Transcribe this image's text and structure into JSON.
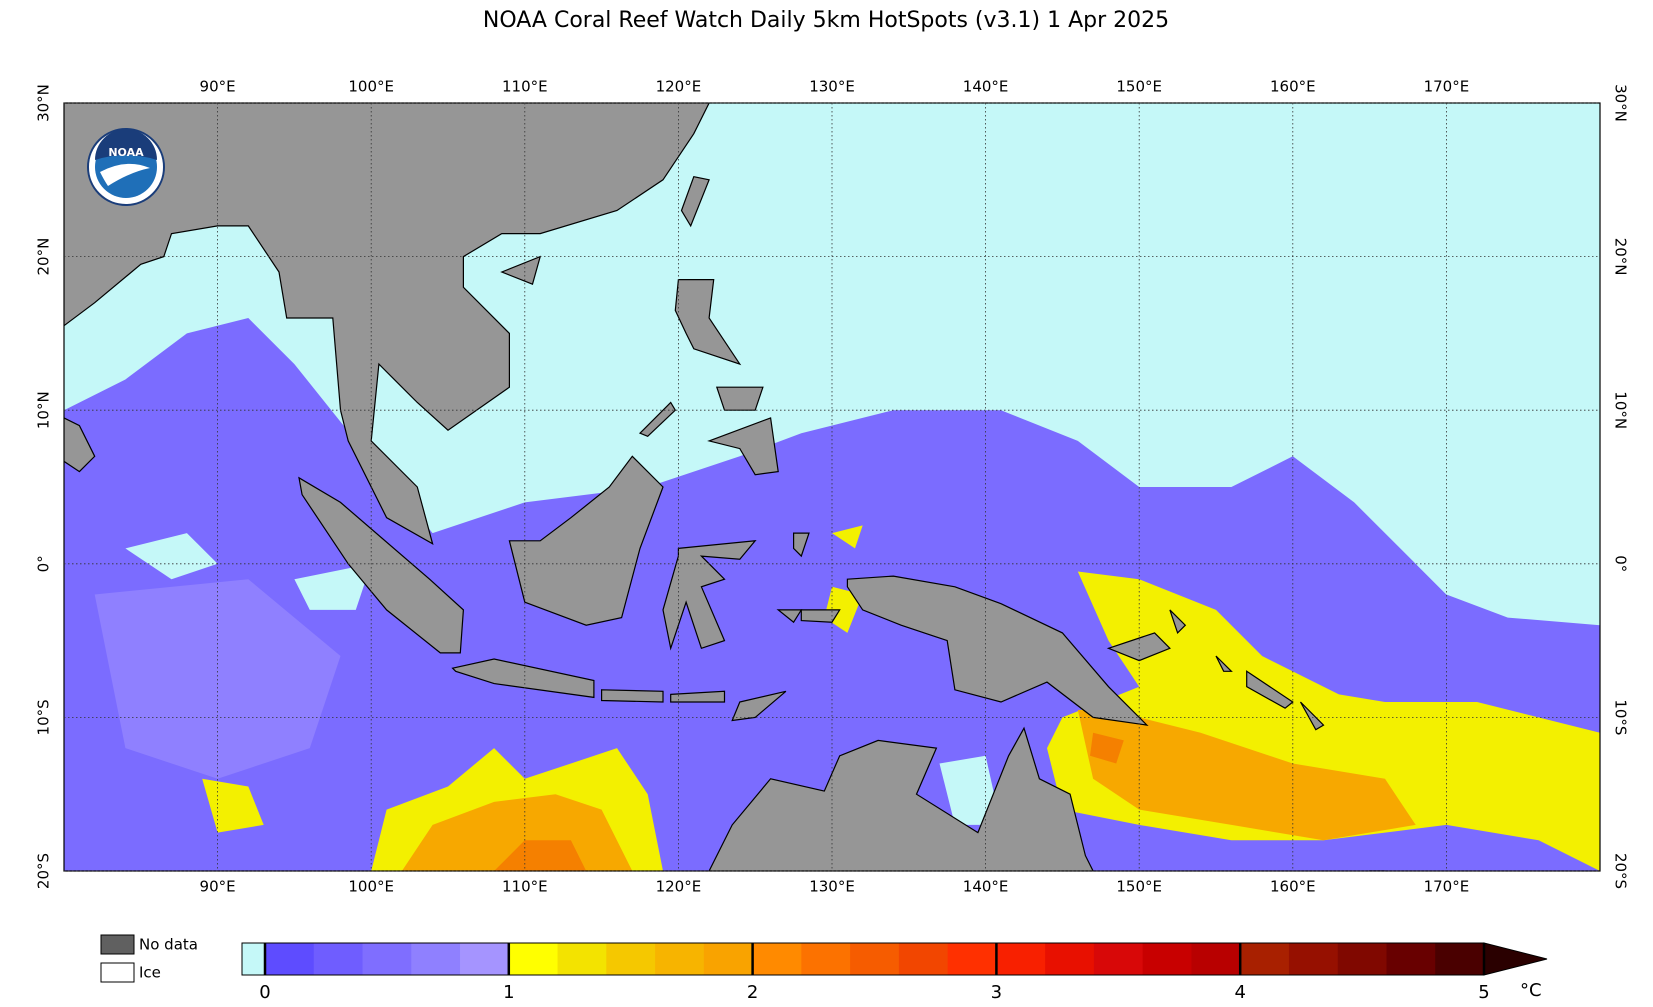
{
  "chart_data": {
    "type": "map",
    "title": "NOAA Coral Reef Watch Daily 5km HotSpots  (v3.1)   1 Apr 2025",
    "logo_text": "NOAA",
    "xlim": [
      80,
      180
    ],
    "ylim": [
      -20,
      30
    ],
    "xticks": [
      {
        "value": 90,
        "label": "90°E"
      },
      {
        "value": 100,
        "label": "100°E"
      },
      {
        "value": 110,
        "label": "110°E"
      },
      {
        "value": 120,
        "label": "120°E"
      },
      {
        "value": 130,
        "label": "130°E"
      },
      {
        "value": 140,
        "label": "140°E"
      },
      {
        "value": 150,
        "label": "150°E"
      },
      {
        "value": 160,
        "label": "160°E"
      },
      {
        "value": 170,
        "label": "170°E"
      }
    ],
    "yticks": [
      {
        "value": 30,
        "label": "30°N"
      },
      {
        "value": 20,
        "label": "20°N"
      },
      {
        "value": 10,
        "label": "10°N"
      },
      {
        "value": 0,
        "label": "0°"
      },
      {
        "value": -10,
        "label": "10°S"
      },
      {
        "value": -20,
        "label": "20°S"
      }
    ],
    "grid": true,
    "land_color": "#969696",
    "ocean_color": "#c5f8f8",
    "colorbar": {
      "lim": [
        0,
        5
      ],
      "ticks": [
        0,
        1,
        2,
        3,
        4,
        5
      ],
      "unit": "°C",
      "below_color": "#c5f8f8",
      "over_color": "#2a0000",
      "colors": [
        "#5e4cff",
        "#6f5dff",
        "#7f6eff",
        "#8f80ff",
        "#a594ff",
        "#ffff00",
        "#f3e300",
        "#f5c800",
        "#f7b400",
        "#f9a300",
        "#ff8a00",
        "#fc7200",
        "#f65c00",
        "#f24600",
        "#ff3000",
        "#f82000",
        "#e81000",
        "#d80808",
        "#c80000",
        "#b80000",
        "#a82000",
        "#961000",
        "#800800",
        "#680000",
        "#4a0000"
      ]
    },
    "legend": [
      {
        "label": "No data",
        "color": "#606060"
      },
      {
        "label": "Ice",
        "color": "#ffffff"
      }
    ]
  }
}
